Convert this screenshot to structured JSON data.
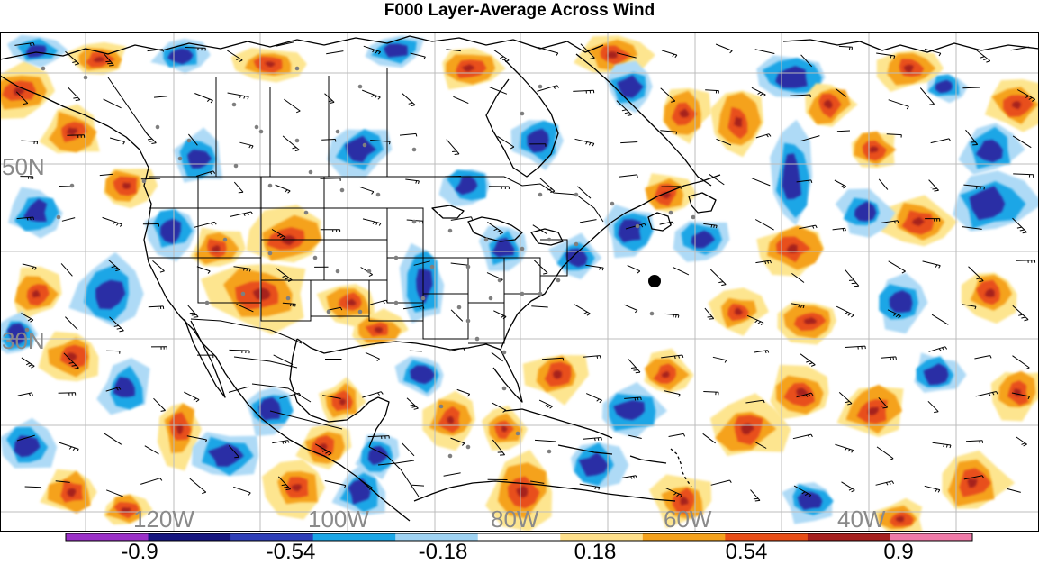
{
  "title": "F000 Layer-Average Across Wind",
  "map": {
    "lat_labels": [
      "50N",
      "30N"
    ],
    "lon_labels": [
      "120W",
      "100W",
      "80W",
      "60W",
      "40W"
    ],
    "marker": "filled-circle-marker"
  },
  "colorbar": {
    "colors": [
      "#9b30c8",
      "#15157f",
      "#2e3eb8",
      "#1aa6e6",
      "#9fd3f3",
      "#ffffff",
      "#ffe08a",
      "#f5a21c",
      "#e84d16",
      "#a6201f",
      "#f07aa8"
    ],
    "tick_labels": [
      "-0.9",
      "-0.54",
      "-0.18",
      "0.18",
      "0.54",
      "0.9"
    ]
  },
  "palette": {
    "dark_blue": "#2a2fa5",
    "blue": "#1aa6e6",
    "light_blue": "#aedaf6",
    "light_yellow": "#fde58f",
    "orange": "#f5a21c",
    "red_orange": "#e8501a",
    "dark_red": "#a6201f"
  }
}
